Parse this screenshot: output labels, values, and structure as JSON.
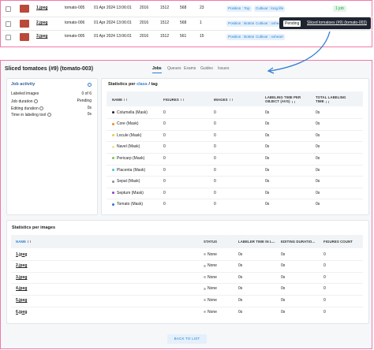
{
  "image_list": {
    "rows": [
      {
        "name": "1.jpeg",
        "dataset": "tomato-005",
        "date": "01 Apr 2024 13:06:01",
        "width": 2016,
        "height": 1512,
        "size": 568,
        "objects": 23,
        "tags": [
          "Position : Top",
          "Cultivar : long life"
        ],
        "jobs": "1 job"
      },
      {
        "name": "2.jpeg",
        "dataset": "tomato-006",
        "date": "01 Apr 2024 13:06:01",
        "width": 2016,
        "height": 1512,
        "size": 568,
        "objects": 1,
        "tags": [
          "Position : Bottom",
          "Cultivar : oxheart"
        ],
        "jobs": null
      },
      {
        "name": "3.jpeg",
        "dataset": "tomato-005",
        "date": "01 Apr 2024 13:06:01",
        "width": 2016,
        "height": 1512,
        "size": 561,
        "objects": 15,
        "tags": [
          "Position : Bottom",
          "Cultivar : oxheart"
        ],
        "jobs": null
      }
    ]
  },
  "popup": {
    "status": "Pending",
    "job": "Sliced tomatoes (#9) (tomato-003)"
  },
  "job": {
    "title": "Sliced tomatoes (#9) (tomato-003)",
    "tabs": [
      "Jobs",
      "Queues",
      "Exams",
      "Guides",
      "Issues"
    ],
    "activity": {
      "title": "Job activity",
      "rows": [
        {
          "label": "Labeled images",
          "value": "0 of 6"
        },
        {
          "label": "Job duration",
          "value": "Pending"
        },
        {
          "label": "Editing duration",
          "value": "0s"
        },
        {
          "label": "Time in labeling tool",
          "value": "0s"
        }
      ]
    },
    "class_stats": {
      "title": [
        "Statistics per",
        "class",
        "/",
        "tag"
      ],
      "columns": [
        "NAME",
        "FIGURES",
        "IMAGES",
        "LABELING TIME PER OBJECT (AVG)",
        "TOTAL LABELING TIME"
      ],
      "rows": [
        {
          "name": "Columella (Mask)",
          "color": "#222222",
          "figures": 0,
          "images": 0,
          "avg": "0s",
          "total": "0s"
        },
        {
          "name": "Core (Mask)",
          "color": "#f08a24",
          "figures": 0,
          "images": 0,
          "avg": "0s",
          "total": "0s"
        },
        {
          "name": "Locule (Mask)",
          "color": "#e8c94a",
          "figures": 0,
          "images": 0,
          "avg": "0s",
          "total": "0s"
        },
        {
          "name": "Navel (Mask)",
          "color": "#f3e38a",
          "figures": 0,
          "images": 0,
          "avg": "0s",
          "total": "0s"
        },
        {
          "name": "Pericarp (Mask)",
          "color": "#7cc242",
          "figures": 0,
          "images": 0,
          "avg": "0s",
          "total": "0s"
        },
        {
          "name": "Placenta (Mask)",
          "color": "#3fc4d8",
          "figures": 0,
          "images": 0,
          "avg": "0s",
          "total": "0s"
        },
        {
          "name": "Sepal (Mask)",
          "color": "#8a8a8a",
          "figures": 0,
          "images": 0,
          "avg": "0s",
          "total": "0s"
        },
        {
          "name": "Septum (Mask)",
          "color": "#8e3fc4",
          "figures": 0,
          "images": 0,
          "avg": "0s",
          "total": "0s"
        },
        {
          "name": "Tomato (Mask)",
          "color": "#3b6fd8",
          "figures": 0,
          "images": 0,
          "avg": "0s",
          "total": "0s"
        }
      ]
    },
    "image_stats": {
      "title": "Statistics per images",
      "columns": [
        "NAME",
        "STATUS",
        "LABELER TIME IN L...",
        "EDITING DURATIO...",
        "FIGURES COUNT"
      ],
      "rows": [
        {
          "name": "1.jpeg",
          "status": "None",
          "labeler": "0s",
          "editing": "0s",
          "figures": 0
        },
        {
          "name": "2.jpeg",
          "status": "None",
          "labeler": "0s",
          "editing": "0s",
          "figures": 0
        },
        {
          "name": "3.jpeg",
          "status": "None",
          "labeler": "0s",
          "editing": "0s",
          "figures": 0
        },
        {
          "name": "4.jpeg",
          "status": "None",
          "labeler": "0s",
          "editing": "0s",
          "figures": 0
        },
        {
          "name": "5.jpeg",
          "status": "None",
          "labeler": "0s",
          "editing": "0s",
          "figures": 0
        },
        {
          "name": "6.jpeg",
          "status": "None",
          "labeler": "0s",
          "editing": "0s",
          "figures": 0
        }
      ]
    },
    "back_button": "BACK TO LIST"
  }
}
